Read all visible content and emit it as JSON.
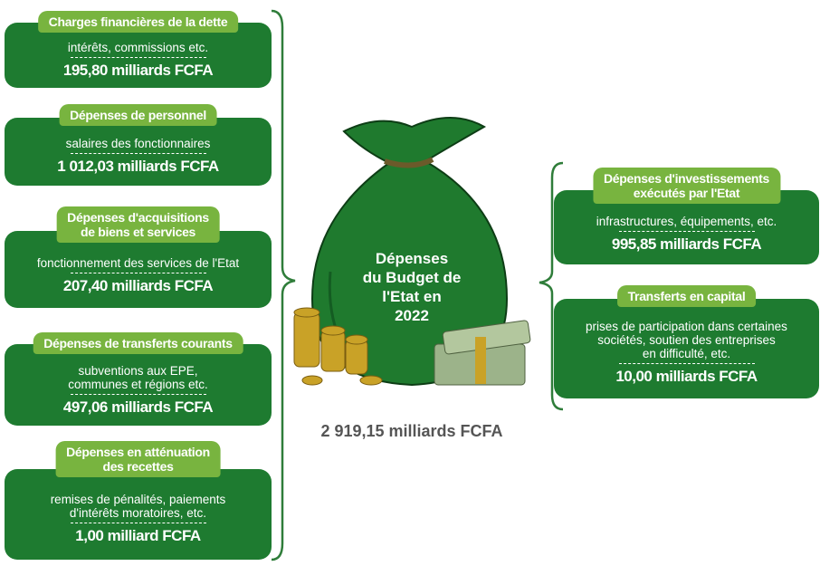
{
  "center": {
    "title_lines": [
      "Dépenses",
      "du Budget de",
      "l'Etat en",
      "2022"
    ],
    "total": "2 919,15 milliards FCFA"
  },
  "left_boxes": [
    {
      "title_lines": [
        "Charges financières de la dette"
      ],
      "description_lines": [
        "intérêts, commissions etc."
      ],
      "amount": "195,80 milliards FCFA"
    },
    {
      "title_lines": [
        "Dépenses de personnel"
      ],
      "description_lines": [
        "salaires des fonctionnaires"
      ],
      "amount": "1 012,03 milliards FCFA"
    },
    {
      "title_lines": [
        "Dépenses d'acquisitions",
        "de biens et services"
      ],
      "description_lines": [
        "fonctionnement des services de l'Etat"
      ],
      "amount": "207,40 milliards FCFA"
    },
    {
      "title_lines": [
        "Dépenses de transferts courants"
      ],
      "description_lines": [
        "subventions aux EPE,",
        "communes et régions etc."
      ],
      "amount": "497,06 milliards FCFA"
    },
    {
      "title_lines": [
        "Dépenses en atténuation",
        "des recettes"
      ],
      "description_lines": [
        "remises de pénalités, paiements",
        "d'intérêts moratoires, etc."
      ],
      "amount": "1,00 milliard FCFA"
    }
  ],
  "right_boxes": [
    {
      "title_lines": [
        "Dépenses d'investissements",
        "exécutés par l'Etat"
      ],
      "description_lines": [
        "infrastructures, équipements, etc."
      ],
      "amount": "995,85 milliards FCFA"
    },
    {
      "title_lines": [
        "Transferts en capital"
      ],
      "description_lines": [
        "prises de participation dans certaines",
        "sociétés, soutien des entreprises",
        "en difficulté, etc."
      ],
      "amount": "10,00 milliards FCFA"
    }
  ]
}
